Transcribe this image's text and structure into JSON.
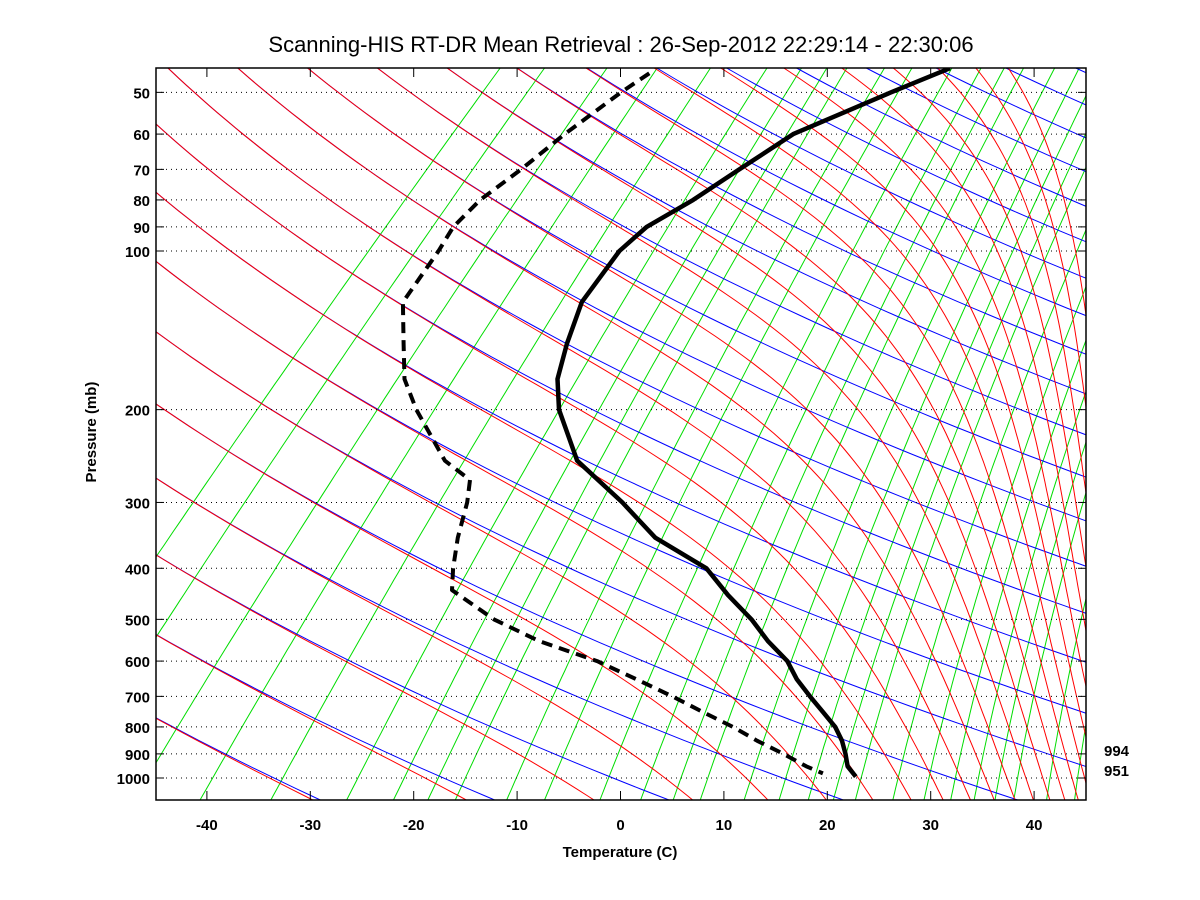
{
  "chart_data": {
    "type": "line",
    "subtype": "skew-T log-p diagram",
    "title": "Scanning-HIS RT-DR Mean Retrieval : 26-Sep-2012 22:29:14 - 22:30:06",
    "xlabel": "Temperature (C)",
    "ylabel": "Pressure (mb)",
    "xlim": [
      -45,
      45
    ],
    "ylim": [
      1100,
      45
    ],
    "yscale": "log",
    "grid": "dotted horizontal at pressure ticks",
    "x_ticks": [
      -40,
      -30,
      -20,
      -10,
      0,
      10,
      20,
      30,
      40
    ],
    "y_ticks": [
      50,
      60,
      70,
      80,
      90,
      100,
      200,
      300,
      400,
      500,
      600,
      700,
      800,
      900,
      1000
    ],
    "series": [
      {
        "name": "Temperature",
        "style": "solid",
        "color": "#000000",
        "pressure": [
          45,
          50,
          60,
          70,
          80,
          90,
          100,
          125,
          150,
          175,
          200,
          250,
          300,
          350,
          400,
          450,
          500,
          550,
          600,
          650,
          700,
          750,
          800,
          850,
          900,
          950,
          994
        ],
        "temperature": [
          -38.9,
          -42.3,
          -47.7,
          -49.5,
          -51.0,
          -52.9,
          -53.2,
          -51.9,
          -49.3,
          -46.8,
          -43.7,
          -37.0,
          -28.6,
          -22.0,
          -14.1,
          -9.4,
          -4.8,
          -1.1,
          2.7,
          5.4,
          8.3,
          11.1,
          13.7,
          15.7,
          17.3,
          18.7,
          20.5
        ]
      },
      {
        "name": "Dewpoint",
        "style": "dashed",
        "color": "#000000",
        "pressure": [
          46,
          50,
          60,
          70,
          80,
          90,
          100,
          125,
          150,
          175,
          200,
          250,
          272,
          300,
          350,
          400,
          440,
          500,
          550,
          600,
          650,
          700,
          750,
          800,
          850,
          900,
          950,
          980
        ],
        "temperature": [
          -67.5,
          -68.4,
          -69.8,
          -70.6,
          -71.6,
          -71.6,
          -70.7,
          -69.2,
          -65.1,
          -61.6,
          -57.5,
          -49.8,
          -45.5,
          -43.6,
          -41.1,
          -38.6,
          -36.6,
          -29.7,
          -23.2,
          -15.7,
          -10.1,
          -5.0,
          -0.5,
          3.8,
          7.5,
          11.3,
          14.7,
          17.0
        ]
      }
    ],
    "annotations": [
      "994",
      "951"
    ],
    "background": {
      "dry_adiabat_color": "#0000ff",
      "moist_adiabat_color": "#ff0000",
      "mixing_ratio_color": "#00dd00",
      "mixing_ratio_g_per_kg": [
        0.01,
        0.02,
        0.05,
        0.1,
        0.2,
        0.4,
        0.6,
        0.8,
        1,
        1.5,
        2,
        3,
        4,
        5,
        6,
        8,
        10,
        12,
        14,
        16,
        20,
        24,
        28,
        32,
        36,
        40,
        48,
        56,
        64,
        72,
        80
      ]
    }
  }
}
